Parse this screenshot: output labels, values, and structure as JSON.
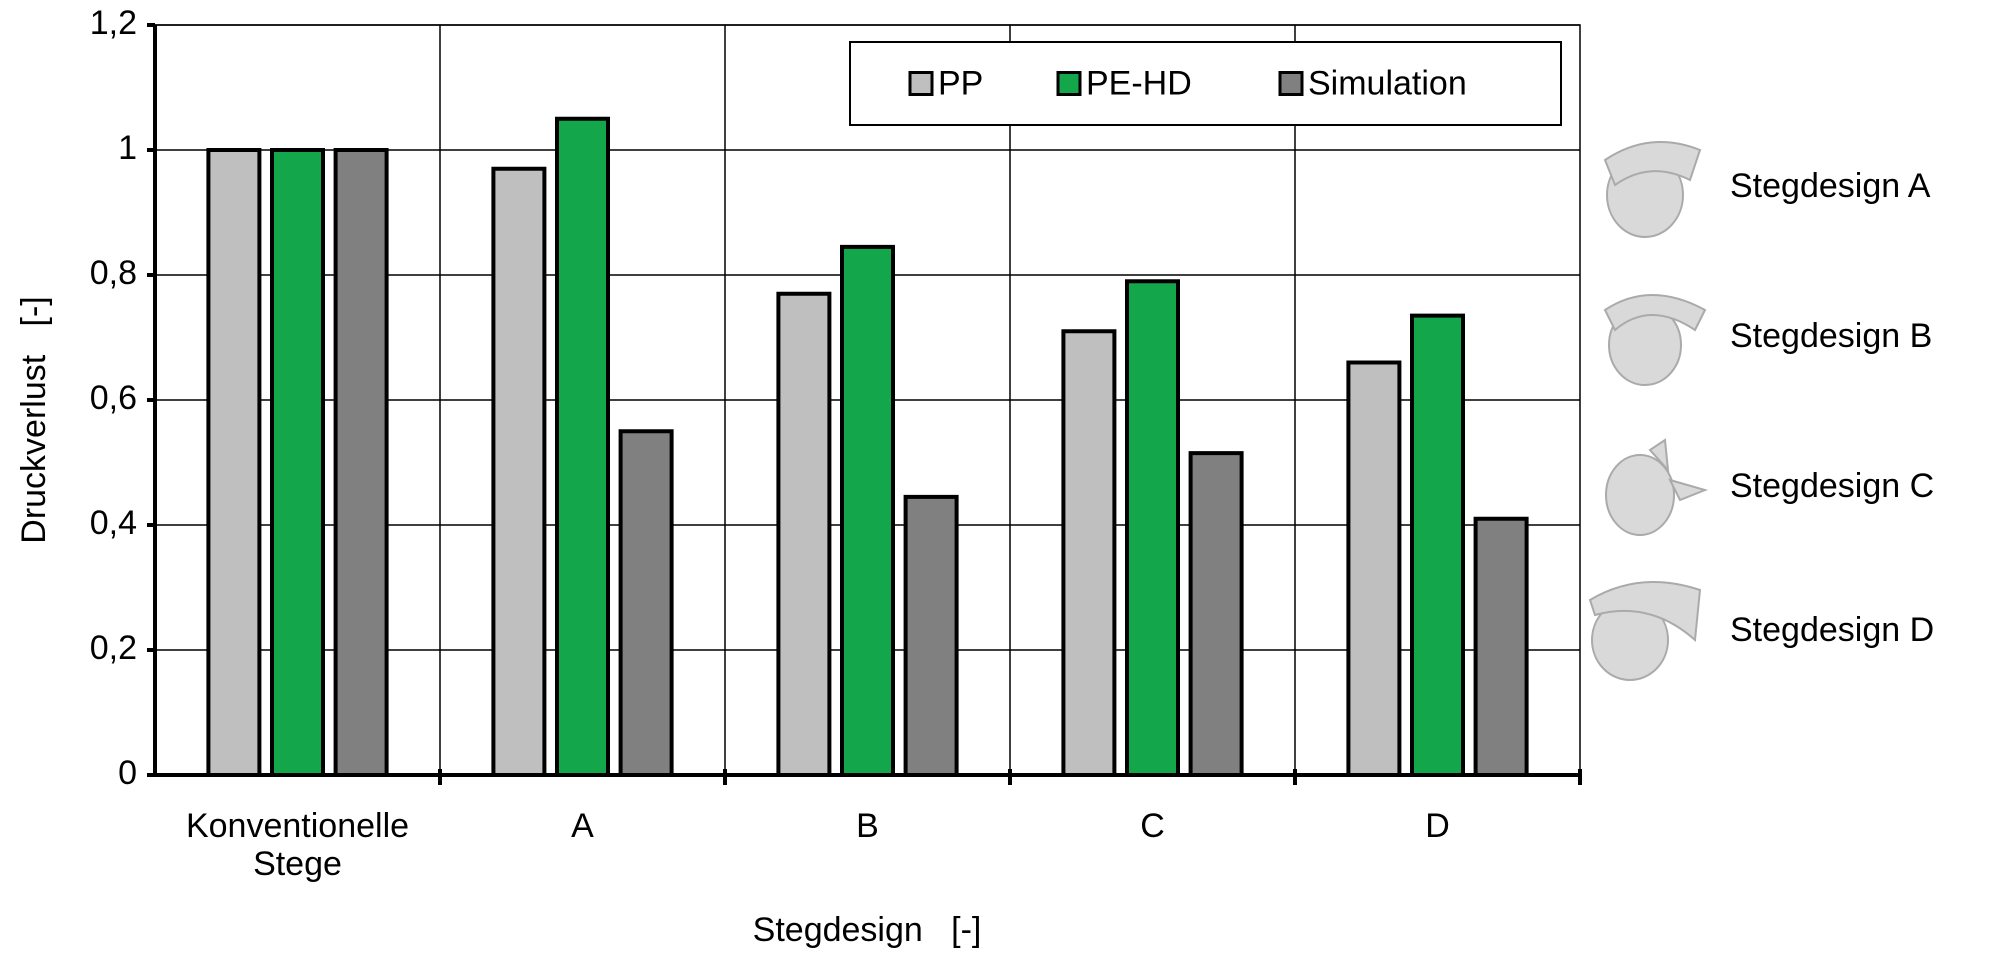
{
  "chart_data": {
    "type": "bar",
    "categories": [
      "Konventionelle Stege",
      "A",
      "B",
      "C",
      "D"
    ],
    "series": [
      {
        "name": "PP",
        "color": "#bfbfbf",
        "values": [
          1,
          0.97,
          0.77,
          0.71,
          0.66
        ]
      },
      {
        "name": "PE-HD",
        "color": "#13a64b",
        "values": [
          1,
          1.05,
          0.845,
          0.79,
          0.735
        ]
      },
      {
        "name": "Simulation",
        "color": "#808080",
        "values": [
          1,
          0.55,
          0.445,
          0.515,
          0.41
        ]
      }
    ],
    "ylim": [
      0,
      1.2
    ],
    "yticks": [
      0,
      {
        "value": 0.2,
        "label": "0,2"
      },
      {
        "value": 0.4,
        "label": "0,4"
      },
      {
        "value": 0.6,
        "label": "0,6"
      },
      {
        "value": 0.8,
        "label": "0,8"
      },
      1,
      {
        "value": 1.2,
        "label": "1,2"
      }
    ],
    "y_label": "Druckverlust   [-]",
    "x_label": "Stegdesign   [-]",
    "grid": true,
    "legend": "top-right",
    "annotations": [
      "Stegdesign A",
      "Stegdesign B",
      "Stegdesign C",
      "Stegdesign D"
    ]
  }
}
